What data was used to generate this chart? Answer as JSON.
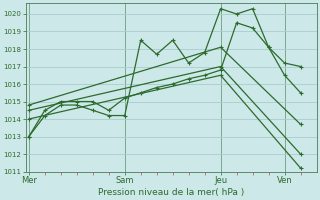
{
  "background_color": "#cce8e8",
  "grid_color": "#aacccc",
  "line_color": "#2d6b2d",
  "title": "Pression niveau de la mer( hPa )",
  "ylim": [
    1011,
    1020.6
  ],
  "yticks": [
    1011,
    1012,
    1013,
    1014,
    1015,
    1016,
    1017,
    1018,
    1019,
    1020
  ],
  "xtick_labels": [
    "Mer",
    "Sam",
    "Jeu",
    "Ven"
  ],
  "xtick_positions": [
    0,
    3,
    6,
    8
  ],
  "xlim": [
    -0.1,
    9.0
  ],
  "vline_positions": [
    0,
    3,
    6,
    8
  ],
  "s1x": [
    0,
    0.5,
    1.0,
    1.5,
    2.0,
    2.5,
    3.0,
    3.5,
    4.0,
    4.5,
    5.0,
    5.5,
    6.0,
    6.5,
    7.0,
    7.5,
    8.0,
    8.5
  ],
  "s1y": [
    1013.0,
    1014.2,
    1014.8,
    1014.8,
    1014.5,
    1014.2,
    1014.2,
    1018.5,
    1017.7,
    1018.5,
    1017.2,
    1017.8,
    1020.3,
    1020.0,
    1020.3,
    1018.1,
    1017.2,
    1017.0
  ],
  "s2x": [
    0,
    0.5,
    1.0,
    1.5,
    2.0,
    2.5,
    3.0,
    3.5,
    4.0,
    4.5,
    5.0,
    5.5,
    6.0,
    6.5,
    7.0,
    7.5,
    8.0,
    8.5
  ],
  "s2y": [
    1013.0,
    1014.5,
    1015.0,
    1015.0,
    1015.0,
    1014.5,
    1015.2,
    1015.5,
    1015.8,
    1016.0,
    1016.3,
    1016.5,
    1016.8,
    1019.5,
    1019.2,
    1018.1,
    1016.5,
    1015.5
  ],
  "sl1x": [
    0,
    6.0,
    8.5
  ],
  "sl1y": [
    1014.8,
    1018.1,
    1013.7
  ],
  "sl2x": [
    0,
    6.0,
    8.5
  ],
  "sl2y": [
    1014.5,
    1017.0,
    1012.0
  ],
  "sl3x": [
    0,
    6.0,
    8.5
  ],
  "sl3y": [
    1014.0,
    1016.5,
    1011.2
  ]
}
